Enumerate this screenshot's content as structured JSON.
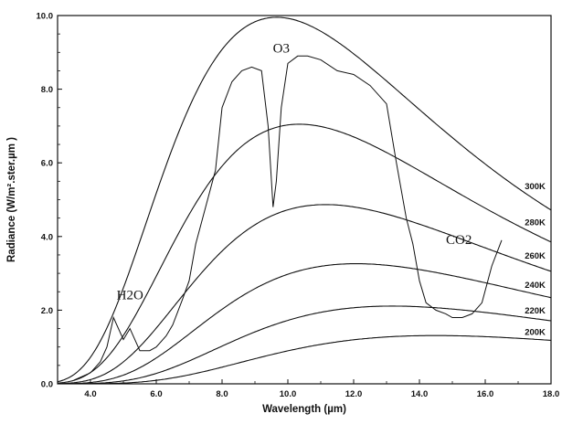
{
  "chart_data": {
    "type": "line",
    "xlabel": "Wavelength (µm)",
    "ylabel": "Radiance (W/m².ster.µm )",
    "xlim": [
      3.0,
      18.0
    ],
    "ylim": [
      0.0,
      10.0
    ],
    "x_ticks": [
      "4.0",
      "6.0",
      "8.0",
      "10.0",
      "12.0",
      "14.0",
      "16.0",
      "18.0"
    ],
    "y_ticks": [
      "0.0",
      "2.0",
      "4.0",
      "6.0",
      "8.0",
      "10.0"
    ],
    "grid": false,
    "blackbody_series": [
      {
        "name": "300K",
        "temperature": 300
      },
      {
        "name": "280K",
        "temperature": 280
      },
      {
        "name": "260K",
        "temperature": 260
      },
      {
        "name": "240K",
        "temperature": 240
      },
      {
        "name": "220K",
        "temperature": 220
      },
      {
        "name": "200K",
        "temperature": 200
      }
    ],
    "measured_spectrum": {
      "x": [
        3.5,
        4.0,
        4.3,
        4.5,
        4.7,
        5.0,
        5.2,
        5.5,
        5.8,
        6.0,
        6.3,
        6.5,
        6.8,
        7.0,
        7.2,
        7.5,
        7.8,
        8.0,
        8.3,
        8.6,
        8.9,
        9.2,
        9.4,
        9.55,
        9.65,
        9.8,
        10.0,
        10.3,
        10.6,
        11.0,
        11.5,
        12.0,
        12.5,
        13.0,
        13.3,
        13.6,
        13.8,
        14.0,
        14.2,
        14.5,
        14.8,
        15.0,
        15.3,
        15.6,
        15.9,
        16.2,
        16.5
      ],
      "y": [
        0.1,
        0.3,
        0.6,
        1.0,
        1.8,
        1.2,
        1.5,
        0.9,
        0.9,
        1.0,
        1.3,
        1.6,
        2.3,
        2.8,
        3.8,
        4.8,
        5.8,
        7.5,
        8.2,
        8.5,
        8.6,
        8.5,
        7.0,
        4.8,
        5.5,
        7.5,
        8.7,
        8.9,
        8.9,
        8.8,
        8.5,
        8.4,
        8.1,
        7.6,
        6.0,
        4.5,
        3.8,
        2.8,
        2.2,
        2.0,
        1.9,
        1.8,
        1.8,
        1.9,
        2.2,
        3.2,
        3.9
      ]
    },
    "annotations": [
      {
        "text": "O3",
        "x": 9.8,
        "y": 9.0
      },
      {
        "text": "H2O",
        "x": 5.2,
        "y": 2.3
      },
      {
        "text": "CO2",
        "x": 15.2,
        "y": 3.8
      }
    ]
  }
}
